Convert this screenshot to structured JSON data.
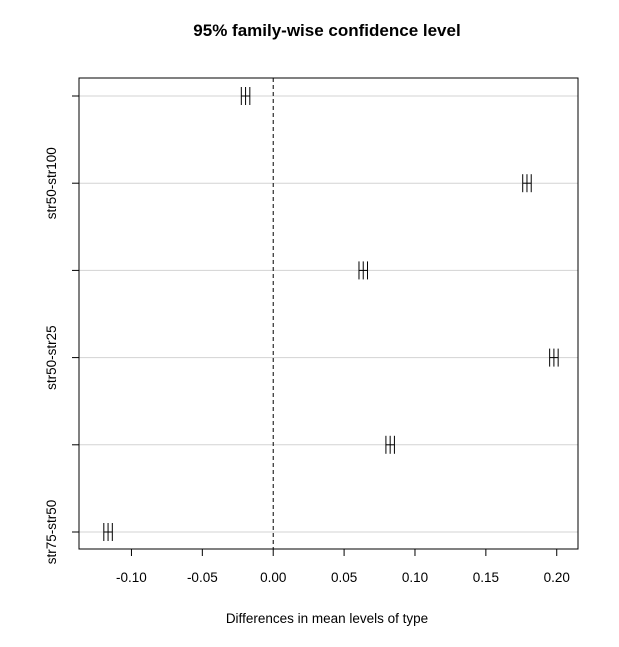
{
  "chart_data": {
    "type": "interval",
    "title": "95% family-wise confidence level",
    "xlabel": "Differences in mean levels of type",
    "ylabel": "",
    "xlim": [
      -0.137,
      0.215
    ],
    "xticks": [
      -0.1,
      -0.05,
      0.0,
      0.05,
      0.1,
      0.15,
      0.2
    ],
    "xtick_labels": [
      "-0.10",
      "-0.05",
      "0.00",
      "0.05",
      "0.10",
      "0.15",
      "0.20"
    ],
    "reference_line": 0,
    "grid": true,
    "comparisons": [
      {
        "label": "",
        "lwr": -0.0225,
        "estimate": -0.0195,
        "upr": -0.0165
      },
      {
        "label": "str50-str100",
        "lwr": 0.176,
        "estimate": 0.179,
        "upr": 0.182
      },
      {
        "label": "",
        "lwr": 0.0605,
        "estimate": 0.0635,
        "upr": 0.0665
      },
      {
        "label": "str50-str25",
        "lwr": 0.195,
        "estimate": 0.198,
        "upr": 0.201
      },
      {
        "label": "",
        "lwr": 0.0795,
        "estimate": 0.0825,
        "upr": 0.0855
      },
      {
        "label": "str75-str50",
        "lwr": -0.1195,
        "estimate": -0.1165,
        "upr": -0.1135
      }
    ]
  }
}
